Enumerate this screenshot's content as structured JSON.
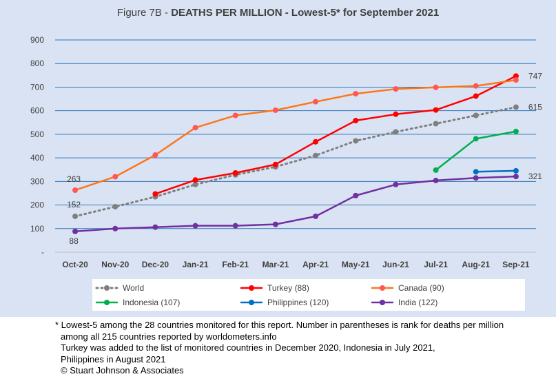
{
  "title": {
    "prefix": "Figure 7B - ",
    "main": "DEATHS PER MILLION - Lowest-5* for September 2021"
  },
  "chart_data": {
    "type": "line",
    "categories": [
      "Oct-20",
      "Nov-20",
      "Dec-20",
      "Jan-21",
      "Feb-21",
      "Mar-21",
      "Apr-21",
      "May-21",
      "Jun-21",
      "Jul-21",
      "Aug-21",
      "Sep-21"
    ],
    "ylim": [
      0,
      900
    ],
    "yticks": [
      {
        "value": 0,
        "label": "-"
      },
      {
        "value": 100,
        "label": "100"
      },
      {
        "value": 200,
        "label": "200"
      },
      {
        "value": 300,
        "label": "300"
      },
      {
        "value": 400,
        "label": "400"
      },
      {
        "value": 500,
        "label": "500"
      },
      {
        "value": 600,
        "label": "600"
      },
      {
        "value": 700,
        "label": "700"
      },
      {
        "value": 800,
        "label": "800"
      },
      {
        "value": 900,
        "label": "900"
      }
    ],
    "grid": true,
    "legend_position": "bottom",
    "series": [
      {
        "name": "World",
        "color": "#7f7f7f",
        "dashed": true,
        "values": [
          152,
          193,
          235,
          287,
          328,
          362,
          410,
          472,
          510,
          545,
          580,
          615
        ]
      },
      {
        "name": "Turkey (88)",
        "color": "#ff0000",
        "dashed": false,
        "values": [
          null,
          null,
          247,
          306,
          336,
          372,
          468,
          558,
          585,
          603,
          662,
          747
        ]
      },
      {
        "name": "Canada (90)",
        "color": "#ff7518",
        "marker_color": "#ff5757",
        "dashed": false,
        "values": [
          263,
          320,
          412,
          528,
          580,
          602,
          638,
          672,
          692,
          699,
          705,
          730
        ]
      },
      {
        "name": "Indonesia (107)",
        "color": "#00b050",
        "dashed": false,
        "values": [
          null,
          null,
          null,
          null,
          null,
          null,
          null,
          null,
          null,
          348,
          481,
          512
        ]
      },
      {
        "name": "Philippines (120)",
        "color": "#0070c0",
        "dashed": false,
        "values": [
          null,
          null,
          null,
          null,
          null,
          null,
          null,
          null,
          null,
          null,
          341,
          345
        ]
      },
      {
        "name": "India (122)",
        "color": "#7030a0",
        "dashed": false,
        "values": [
          88,
          100,
          106,
          112,
          112,
          118,
          152,
          240,
          287,
          304,
          315,
          321
        ]
      }
    ],
    "data_labels": [
      {
        "series": "Canada (90)",
        "index": 0,
        "text": "263"
      },
      {
        "series": "World",
        "index": 0,
        "text": "152"
      },
      {
        "series": "India (122)",
        "index": 0,
        "text": "88"
      },
      {
        "series": "Turkey (88)",
        "index": 11,
        "text": "747"
      },
      {
        "series": "World",
        "index": 11,
        "text": "615"
      },
      {
        "series": "India (122)",
        "index": 11,
        "text": "321"
      }
    ]
  },
  "footnotes": [
    "* Lowest-5 among the 28 countries monitored for this report. Number in parentheses is rank for deaths per million",
    "among all 215 countries reported by worldometers.info",
    "Turkey was added to the list of monitored countries in December 2020, Indonesia in July 2021,",
    "Philippines in August 2021",
    "© Stuart Johnson & Associates"
  ]
}
